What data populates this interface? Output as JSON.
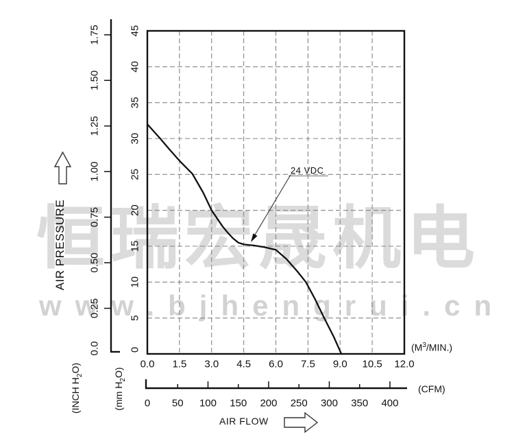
{
  "watermark": {
    "cn": "恒瑞宏晟机电",
    "url": "www.bjhengrui.cn"
  },
  "chart_data": {
    "type": "line",
    "title": "",
    "legend_position": "none",
    "grid": {
      "x_step": 1.5,
      "y_step": 5,
      "style": "dashed",
      "on": true
    },
    "titles": {
      "y_axis": "AIR PRESSURE",
      "x_axis": "AIR FLOW"
    },
    "annotation": {
      "label": "24 VDC",
      "points_to": [
        4.6,
        15.4
      ]
    },
    "series": [
      {
        "name": "24 VDC",
        "x_unit": "M3/MIN.",
        "y_unit": "mm H2O",
        "points": [
          [
            0,
            32
          ],
          [
            0.6,
            30.0
          ],
          [
            1.0,
            28.6
          ],
          [
            1.5,
            26.9
          ],
          [
            2.1,
            25.1
          ],
          [
            2.6,
            22.5
          ],
          [
            3.0,
            20.0
          ],
          [
            3.5,
            17.8
          ],
          [
            3.75,
            16.9
          ],
          [
            4.0,
            16.1
          ],
          [
            4.25,
            15.5
          ],
          [
            4.5,
            15.25
          ],
          [
            5.0,
            15.1
          ],
          [
            5.5,
            14.85
          ],
          [
            6.0,
            14.5
          ],
          [
            6.5,
            13.2
          ],
          [
            7.0,
            11.5
          ],
          [
            7.4,
            10.0
          ],
          [
            7.8,
            7.8
          ],
          [
            8.26,
            5.0
          ],
          [
            8.7,
            2.4
          ],
          [
            9.06,
            0
          ]
        ]
      }
    ],
    "x_axis_m3min": {
      "range": [
        0,
        12
      ],
      "ticks": [
        "0.0",
        "1.5",
        "3.0",
        "4.5",
        "6.0",
        "7.5",
        "9.0",
        "10.5",
        "12.0"
      ],
      "unit_parts": [
        "(M",
        "3",
        "/MIN.)"
      ]
    },
    "x_axis_cfm": {
      "ticks": [
        "0",
        "50",
        "100",
        "150",
        "200",
        "250",
        "300",
        "350",
        "400"
      ],
      "unit": "(CFM)",
      "m3min_per_cfm": 0.0283168
    },
    "y_axis_mm": {
      "range": [
        0,
        45
      ],
      "ticks": [
        "0",
        "5",
        "10",
        "15",
        "20",
        "25",
        "30",
        "35",
        "40",
        "45"
      ],
      "unit_parts": [
        "(mm H",
        "2",
        "O)"
      ]
    },
    "y_axis_inch": {
      "ticks": [
        "0.0",
        "0.25",
        "0.50",
        "0.75",
        "1.00",
        "1.25",
        "1.50",
        "1.75"
      ],
      "mm_per_inch": 25.4,
      "unit_parts": [
        "(INCH H",
        "2",
        "O)"
      ]
    },
    "colors": {
      "curve": "#111111",
      "axis": "#111111",
      "grid": "#848484",
      "text": "#111111",
      "watermark": "#dbdbdb",
      "annotation_line": "#333333"
    }
  }
}
